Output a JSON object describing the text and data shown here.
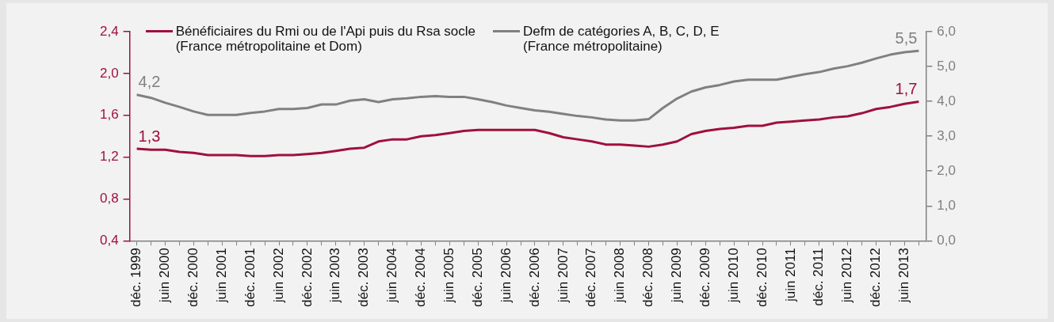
{
  "chart_data": {
    "type": "line",
    "categories": [
      "déc. 1999",
      null,
      "juin 2000",
      null,
      "déc. 2000",
      null,
      "juin 2001",
      null,
      "déc. 2001",
      null,
      "juin 2002",
      null,
      "déc. 2002",
      null,
      "juin 2003",
      null,
      "déc. 2003",
      null,
      "juin 2004",
      null,
      "déc. 2004",
      null,
      "juin 2005",
      null,
      "déc. 2005",
      null,
      "juin 2006",
      null,
      "déc. 2006",
      null,
      "juin 2007",
      null,
      "déc. 2007",
      null,
      "juin 2008",
      null,
      "déc. 2008",
      null,
      "juin 2009",
      null,
      "déc. 2009",
      null,
      "juin 2010",
      null,
      "déc. 2010",
      null,
      "juin 2011",
      null,
      "déc. 2011",
      null,
      "juin 2012",
      null,
      "déc. 2012",
      null,
      "juin 2013",
      null
    ],
    "series": [
      {
        "name": "Bénéficiaires du Rmi ou de l'Api puis du Rsa socle\n(France métropolitaine et Dom)",
        "color": "#a0103c",
        "values": [
          1.28,
          1.27,
          1.27,
          1.25,
          1.24,
          1.22,
          1.22,
          1.22,
          1.21,
          1.21,
          1.22,
          1.22,
          1.23,
          1.24,
          1.26,
          1.28,
          1.29,
          1.35,
          1.37,
          1.37,
          1.4,
          1.41,
          1.43,
          1.45,
          1.46,
          1.46,
          1.46,
          1.46,
          1.46,
          1.43,
          1.39,
          1.37,
          1.35,
          1.32,
          1.32,
          1.31,
          1.3,
          1.32,
          1.35,
          1.42,
          1.45,
          1.47,
          1.48,
          1.5,
          1.5,
          1.53,
          1.54,
          1.55,
          1.56,
          1.58,
          1.59,
          1.62,
          1.66,
          1.68,
          1.71,
          1.73
        ],
        "value_labels": [
          "1,3",
          null,
          null,
          null,
          null,
          null,
          null,
          null,
          null,
          null,
          null,
          null,
          null,
          null,
          null,
          null,
          null,
          null,
          null,
          null,
          null,
          null,
          null,
          null,
          null,
          null,
          null,
          null,
          null,
          null,
          null,
          null,
          null,
          null,
          null,
          null,
          null,
          null,
          null,
          null,
          null,
          null,
          null,
          null,
          null,
          null,
          null,
          null,
          null,
          null,
          null,
          null,
          null,
          null,
          null,
          "1,7"
        ]
      },
      {
        "name": "Defm de catégories A, B, C, D, E\n(France métropolitaine)",
        "color": "#808080",
        "axis": "y2",
        "values": [
          4.19,
          4.1,
          3.96,
          3.84,
          3.71,
          3.61,
          3.61,
          3.61,
          3.67,
          3.71,
          3.78,
          3.78,
          3.81,
          3.91,
          3.91,
          4.02,
          4.06,
          3.98,
          4.06,
          4.09,
          4.13,
          4.15,
          4.13,
          4.13,
          4.06,
          3.98,
          3.88,
          3.81,
          3.74,
          3.7,
          3.64,
          3.58,
          3.54,
          3.48,
          3.45,
          3.45,
          3.49,
          3.81,
          4.08,
          4.28,
          4.4,
          4.47,
          4.57,
          4.62,
          4.62,
          4.62,
          4.7,
          4.78,
          4.84,
          4.94,
          5.01,
          5.11,
          5.23,
          5.34,
          5.41,
          5.45
        ],
        "value_labels": [
          "4,2",
          null,
          null,
          null,
          null,
          null,
          null,
          null,
          null,
          null,
          null,
          null,
          null,
          null,
          null,
          null,
          null,
          null,
          null,
          null,
          null,
          null,
          null,
          null,
          null,
          null,
          null,
          null,
          null,
          null,
          null,
          null,
          null,
          null,
          null,
          null,
          null,
          null,
          null,
          null,
          null,
          null,
          null,
          null,
          null,
          null,
          null,
          null,
          null,
          null,
          null,
          null,
          null,
          null,
          null,
          "5,5"
        ]
      }
    ],
    "ylim": [
      0.4,
      2.4
    ],
    "yticks": [
      {
        "value": 0.4,
        "label": "0,4"
      },
      {
        "value": 0.8,
        "label": "0,8"
      },
      {
        "value": 1.2,
        "label": "1,2"
      },
      {
        "value": 1.6,
        "label": "1,6"
      },
      {
        "value": 2.0,
        "label": "2,0"
      },
      {
        "value": 2.4,
        "label": "2,4"
      }
    ],
    "y2lim": [
      0,
      6
    ],
    "y2ticks": [
      {
        "value": 0,
        "label": "0,0"
      },
      {
        "value": 1,
        "label": "1,0"
      },
      {
        "value": 2,
        "label": "2,0"
      },
      {
        "value": 3,
        "label": "3,0"
      },
      {
        "value": 4,
        "label": "4,0"
      },
      {
        "value": 5,
        "label": "5,0"
      },
      {
        "value": 6,
        "label": "6,0"
      }
    ],
    "legend": "top",
    "marker": "none"
  }
}
